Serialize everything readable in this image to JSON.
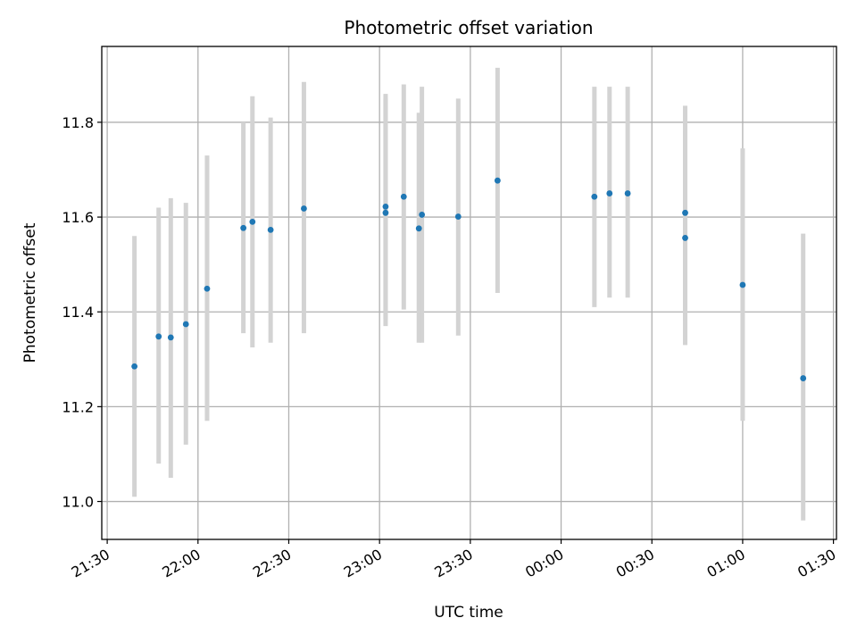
{
  "chart_data": {
    "type": "scatter",
    "title": "Photometric offset variation",
    "xlabel": "UTC time",
    "ylabel": "Photometric offset",
    "x_axis": {
      "unit": "time of day (UTC)",
      "range": [
        "21:28",
        "01:31 (+1 day)"
      ],
      "tick_labels": [
        "21:30",
        "22:00",
        "22:30",
        "23:00",
        "23:30",
        "00:00",
        "00:30",
        "01:00",
        "01:30"
      ],
      "tick_label_rotation_deg": -30
    },
    "y_axis": {
      "range": [
        10.92,
        11.96
      ],
      "ticks": [
        11.0,
        11.2,
        11.4,
        11.6,
        11.8
      ],
      "tick_labels": [
        "11.0",
        "11.2",
        "11.4",
        "11.6",
        "11.8"
      ]
    },
    "grid": true,
    "marker_color": "#1f77b4",
    "errorbar_color": "#d3d3d3",
    "points": [
      {
        "t": "21:39",
        "y": 11.285,
        "ylow": 11.01,
        "yhigh": 11.56
      },
      {
        "t": "21:47",
        "y": 11.348,
        "ylow": 11.08,
        "yhigh": 11.62
      },
      {
        "t": "21:51",
        "y": 11.346,
        "ylow": 11.05,
        "yhigh": 11.64
      },
      {
        "t": "21:56",
        "y": 11.374,
        "ylow": 11.12,
        "yhigh": 11.63
      },
      {
        "t": "22:03",
        "y": 11.449,
        "ylow": 11.17,
        "yhigh": 11.73
      },
      {
        "t": "22:15",
        "y": 11.577,
        "ylow": 11.355,
        "yhigh": 11.8
      },
      {
        "t": "22:18",
        "y": 11.59,
        "ylow": 11.325,
        "yhigh": 11.855
      },
      {
        "t": "22:24",
        "y": 11.573,
        "ylow": 11.335,
        "yhigh": 11.81
      },
      {
        "t": "22:35",
        "y": 11.618,
        "ylow": 11.355,
        "yhigh": 11.885
      },
      {
        "t": "23:02",
        "y": 11.609,
        "ylow": 11.37,
        "yhigh": 11.85
      },
      {
        "t": "23:02",
        "y": 11.622,
        "ylow": 11.385,
        "yhigh": 11.86
      },
      {
        "t": "23:08",
        "y": 11.643,
        "ylow": 11.405,
        "yhigh": 11.88
      },
      {
        "t": "23:13",
        "y": 11.576,
        "ylow": 11.335,
        "yhigh": 11.82
      },
      {
        "t": "23:14",
        "y": 11.605,
        "ylow": 11.335,
        "yhigh": 11.875
      },
      {
        "t": "23:26",
        "y": 11.601,
        "ylow": 11.35,
        "yhigh": 11.85
      },
      {
        "t": "23:39",
        "y": 11.677,
        "ylow": 11.44,
        "yhigh": 11.915
      },
      {
        "t": "00:11",
        "y": 11.643,
        "ylow": 11.41,
        "yhigh": 11.875
      },
      {
        "t": "00:16",
        "y": 11.65,
        "ylow": 11.43,
        "yhigh": 11.875
      },
      {
        "t": "00:22",
        "y": 11.65,
        "ylow": 11.43,
        "yhigh": 11.875
      },
      {
        "t": "00:41",
        "y": 11.556,
        "ylow": 11.33,
        "yhigh": 11.78
      },
      {
        "t": "00:41",
        "y": 11.609,
        "ylow": 11.38,
        "yhigh": 11.835
      },
      {
        "t": "01:00",
        "y": 11.457,
        "ylow": 11.17,
        "yhigh": 11.745
      },
      {
        "t": "01:20",
        "y": 11.26,
        "ylow": 10.96,
        "yhigh": 11.565
      }
    ]
  }
}
